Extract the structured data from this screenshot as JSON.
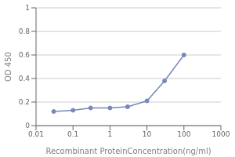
{
  "chart_data": {
    "type": "line",
    "x": [
      0.03,
      0.1,
      0.3,
      1,
      3,
      10,
      30,
      100
    ],
    "values": [
      0.12,
      0.13,
      0.15,
      0.15,
      0.16,
      0.21,
      0.38,
      0.6
    ],
    "color": "#7788bb",
    "marker": "circle",
    "xlabel": "Recombinant ProteinConcentration(ng/ml)",
    "ylabel": "OD 450",
    "log": "x",
    "xlim": [
      0.01,
      1000
    ],
    "ylim": [
      0,
      1
    ],
    "xticks": [
      0.01,
      0.1,
      1,
      10,
      100,
      1000
    ],
    "yticks": [
      0,
      0.2,
      0.4,
      0.6,
      0.8,
      1
    ],
    "grid": "y"
  }
}
